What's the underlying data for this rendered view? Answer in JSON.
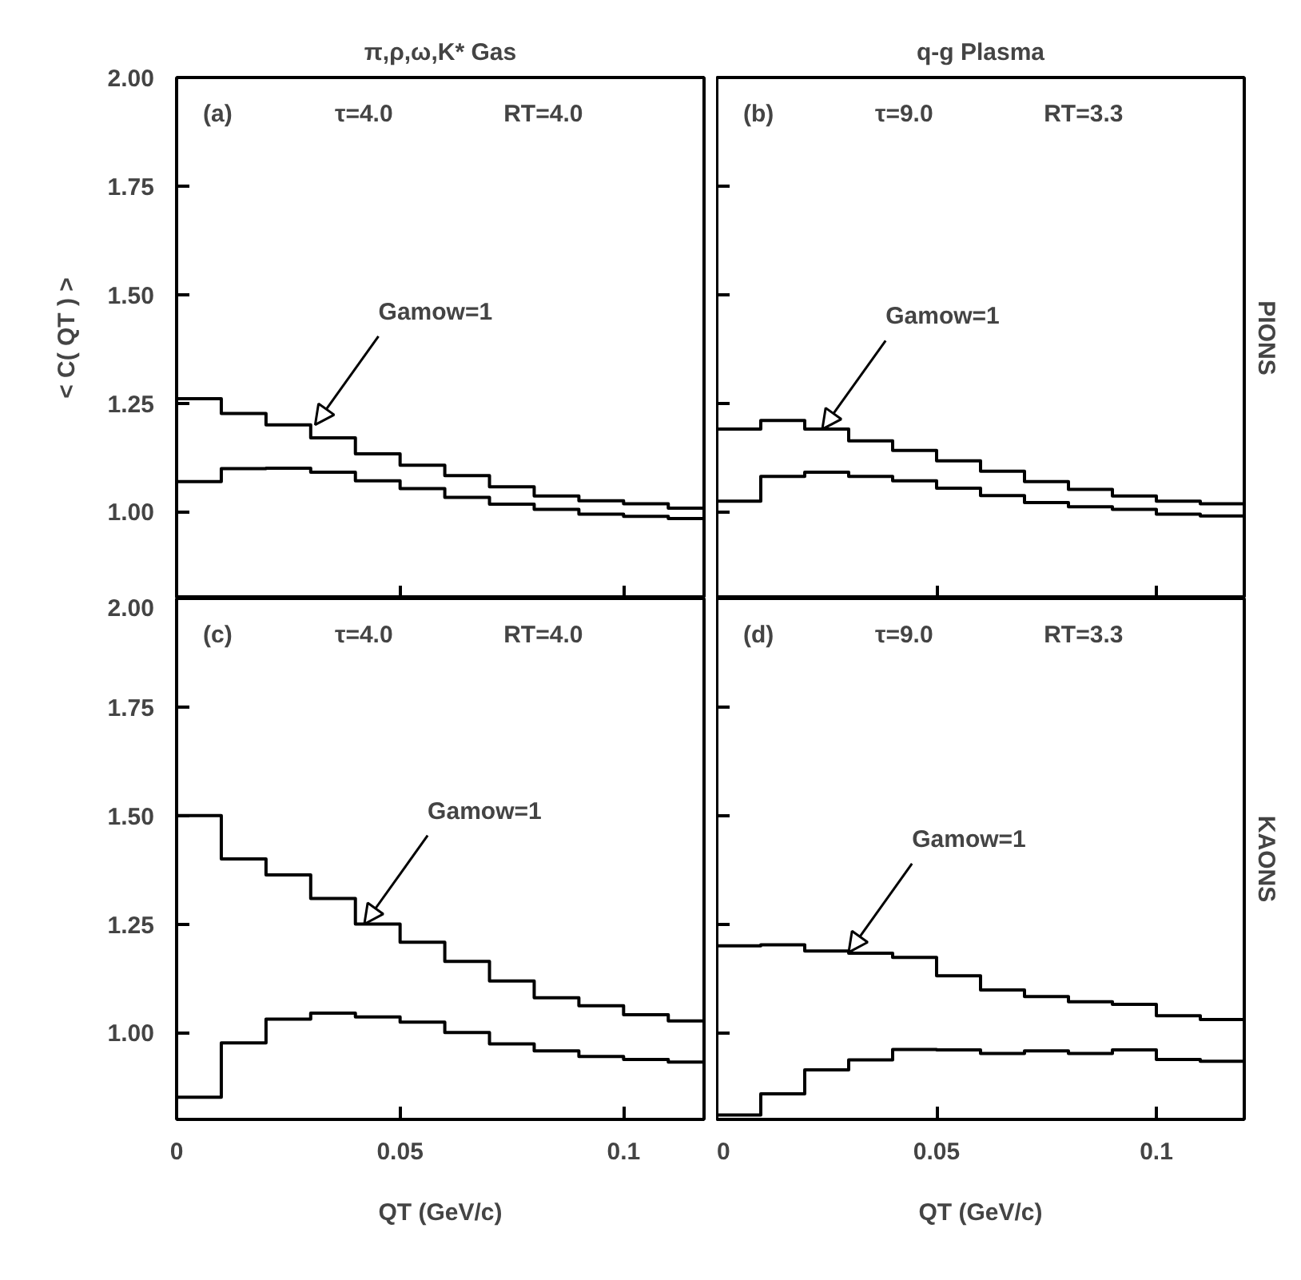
{
  "chart_data": [
    {
      "type": "step",
      "title": "π,ρ,ω,K* Gas",
      "ylabel": "< C( QT ) >",
      "x": [
        0,
        0.01,
        0.02,
        0.03,
        0.04,
        0.05,
        0.06,
        0.07,
        0.08,
        0.09,
        0.1,
        0.11,
        0.118
      ],
      "xlim": [
        0,
        0.118
      ],
      "ylim": [
        0.8,
        2.0
      ],
      "yticks": [
        {
          "value": 1.0,
          "label": "1.00"
        },
        {
          "value": 1.25,
          "label": "1.25"
        },
        {
          "value": 1.5,
          "label": "1.50"
        },
        {
          "value": 1.75,
          "label": "1.75"
        },
        {
          "value": 2.0,
          "label": "2.00"
        }
      ],
      "xticks": [
        0,
        0.05,
        0.1
      ],
      "tick_labels": "y",
      "grid": false,
      "annotations": [
        "(a)",
        "τ=4.0",
        "RT=4.0",
        {
          "text": "Gamow=1",
          "x": 0.031,
          "y": 1.2
        }
      ],
      "series": [
        {
          "color": "#000000",
          "values": [
            1.26,
            1.226,
            1.2,
            1.17,
            1.133,
            1.107,
            1.083,
            1.057,
            1.036,
            1.025,
            1.018,
            1.008,
            1.008
          ]
        },
        {
          "color": "#000000",
          "values": [
            1.069,
            1.099,
            1.1,
            1.091,
            1.071,
            1.053,
            1.033,
            1.017,
            1.005,
            0.994,
            0.989,
            0.984,
            0.984
          ]
        }
      ]
    },
    {
      "type": "step",
      "title": "q-g Plasma",
      "y2label": "PIONS",
      "x": [
        0,
        0.01,
        0.02,
        0.03,
        0.04,
        0.05,
        0.06,
        0.07,
        0.08,
        0.09,
        0.1,
        0.11,
        0.12
      ],
      "xlim": [
        0,
        0.12
      ],
      "ylim": [
        0.8,
        2.0
      ],
      "yticks": [
        {
          "value": 1.0,
          "label": null
        },
        {
          "value": 1.25,
          "label": null
        },
        {
          "value": 1.5,
          "label": null
        },
        {
          "value": 1.75,
          "label": null
        },
        {
          "value": 2.0,
          "label": null
        }
      ],
      "xticks": [
        0,
        0.05,
        0.1
      ],
      "tick_labels": false,
      "grid": false,
      "annotations": [
        "(b)",
        "τ=9.0",
        "RT=3.3",
        {
          "text": "Gamow=1",
          "x": 0.024,
          "y": 1.19
        }
      ],
      "series": [
        {
          "color": "#000000",
          "values": [
            1.19,
            1.21,
            1.19,
            1.163,
            1.141,
            1.117,
            1.093,
            1.069,
            1.051,
            1.036,
            1.024,
            1.018,
            1.018
          ]
        },
        {
          "color": "#000000",
          "values": [
            1.024,
            1.081,
            1.091,
            1.081,
            1.071,
            1.054,
            1.037,
            1.021,
            1.011,
            1.005,
            0.994,
            0.99,
            0.99
          ]
        }
      ]
    },
    {
      "type": "step",
      "xlabel": "QT (GeV/c)",
      "x": [
        0,
        0.01,
        0.02,
        0.03,
        0.04,
        0.05,
        0.06,
        0.07,
        0.08,
        0.09,
        0.1,
        0.11,
        0.118
      ],
      "xlim": [
        0,
        0.118
      ],
      "ylim": [
        0.8,
        2.0
      ],
      "yticks": [
        {
          "value": 1.0,
          "label": "1.00"
        },
        {
          "value": 1.25,
          "label": "1.25"
        },
        {
          "value": 1.5,
          "label": "1.50"
        },
        {
          "value": 1.75,
          "label": "1.75"
        },
        {
          "value": 2.0,
          "label": "2.00"
        }
      ],
      "xticks": [
        0,
        0.05,
        0.1
      ],
      "grid": false,
      "annotations": [
        "(c)",
        "τ=4.0",
        "RT=4.0",
        {
          "text": "Gamow=1",
          "x": 0.042,
          "y": 1.25
        }
      ],
      "series": [
        {
          "color": "#000000",
          "values": [
            1.5,
            1.4,
            1.363,
            1.309,
            1.25,
            1.208,
            1.164,
            1.119,
            1.08,
            1.062,
            1.041,
            1.027,
            1.027
          ]
        },
        {
          "color": "#000000",
          "values": [
            0.851,
            0.976,
            1.031,
            1.045,
            1.036,
            1.024,
            1.0,
            0.974,
            0.958,
            0.945,
            0.938,
            0.932,
            0.932
          ]
        }
      ]
    },
    {
      "type": "step",
      "xlabel": "QT (GeV/c)",
      "y2label": "KAONS",
      "x": [
        0,
        0.01,
        0.02,
        0.03,
        0.04,
        0.05,
        0.06,
        0.07,
        0.08,
        0.09,
        0.1,
        0.11,
        0.12
      ],
      "xlim": [
        0,
        0.12
      ],
      "ylim": [
        0.8,
        2.0
      ],
      "yticks": [
        {
          "value": 1.0,
          "label": null
        },
        {
          "value": 1.25,
          "label": null
        },
        {
          "value": 1.5,
          "label": null
        },
        {
          "value": 1.75,
          "label": null
        },
        {
          "value": 2.0,
          "label": null
        }
      ],
      "xticks": [
        0,
        0.05,
        0.1
      ],
      "tick_labels": "x",
      "grid": false,
      "annotations": [
        "(d)",
        "τ=9.0",
        "RT=3.3",
        {
          "text": "Gamow=1",
          "x": 0.03,
          "y": 1.185
        }
      ],
      "series": [
        {
          "color": "#000000",
          "values": [
            1.2,
            1.202,
            1.188,
            1.183,
            1.173,
            1.131,
            1.098,
            1.083,
            1.071,
            1.065,
            1.039,
            1.03,
            1.03
          ]
        },
        {
          "color": "#000000",
          "values": [
            0.81,
            0.859,
            0.914,
            0.937,
            0.961,
            0.96,
            0.952,
            0.958,
            0.952,
            0.96,
            0.938,
            0.934,
            0.934
          ]
        }
      ]
    }
  ]
}
